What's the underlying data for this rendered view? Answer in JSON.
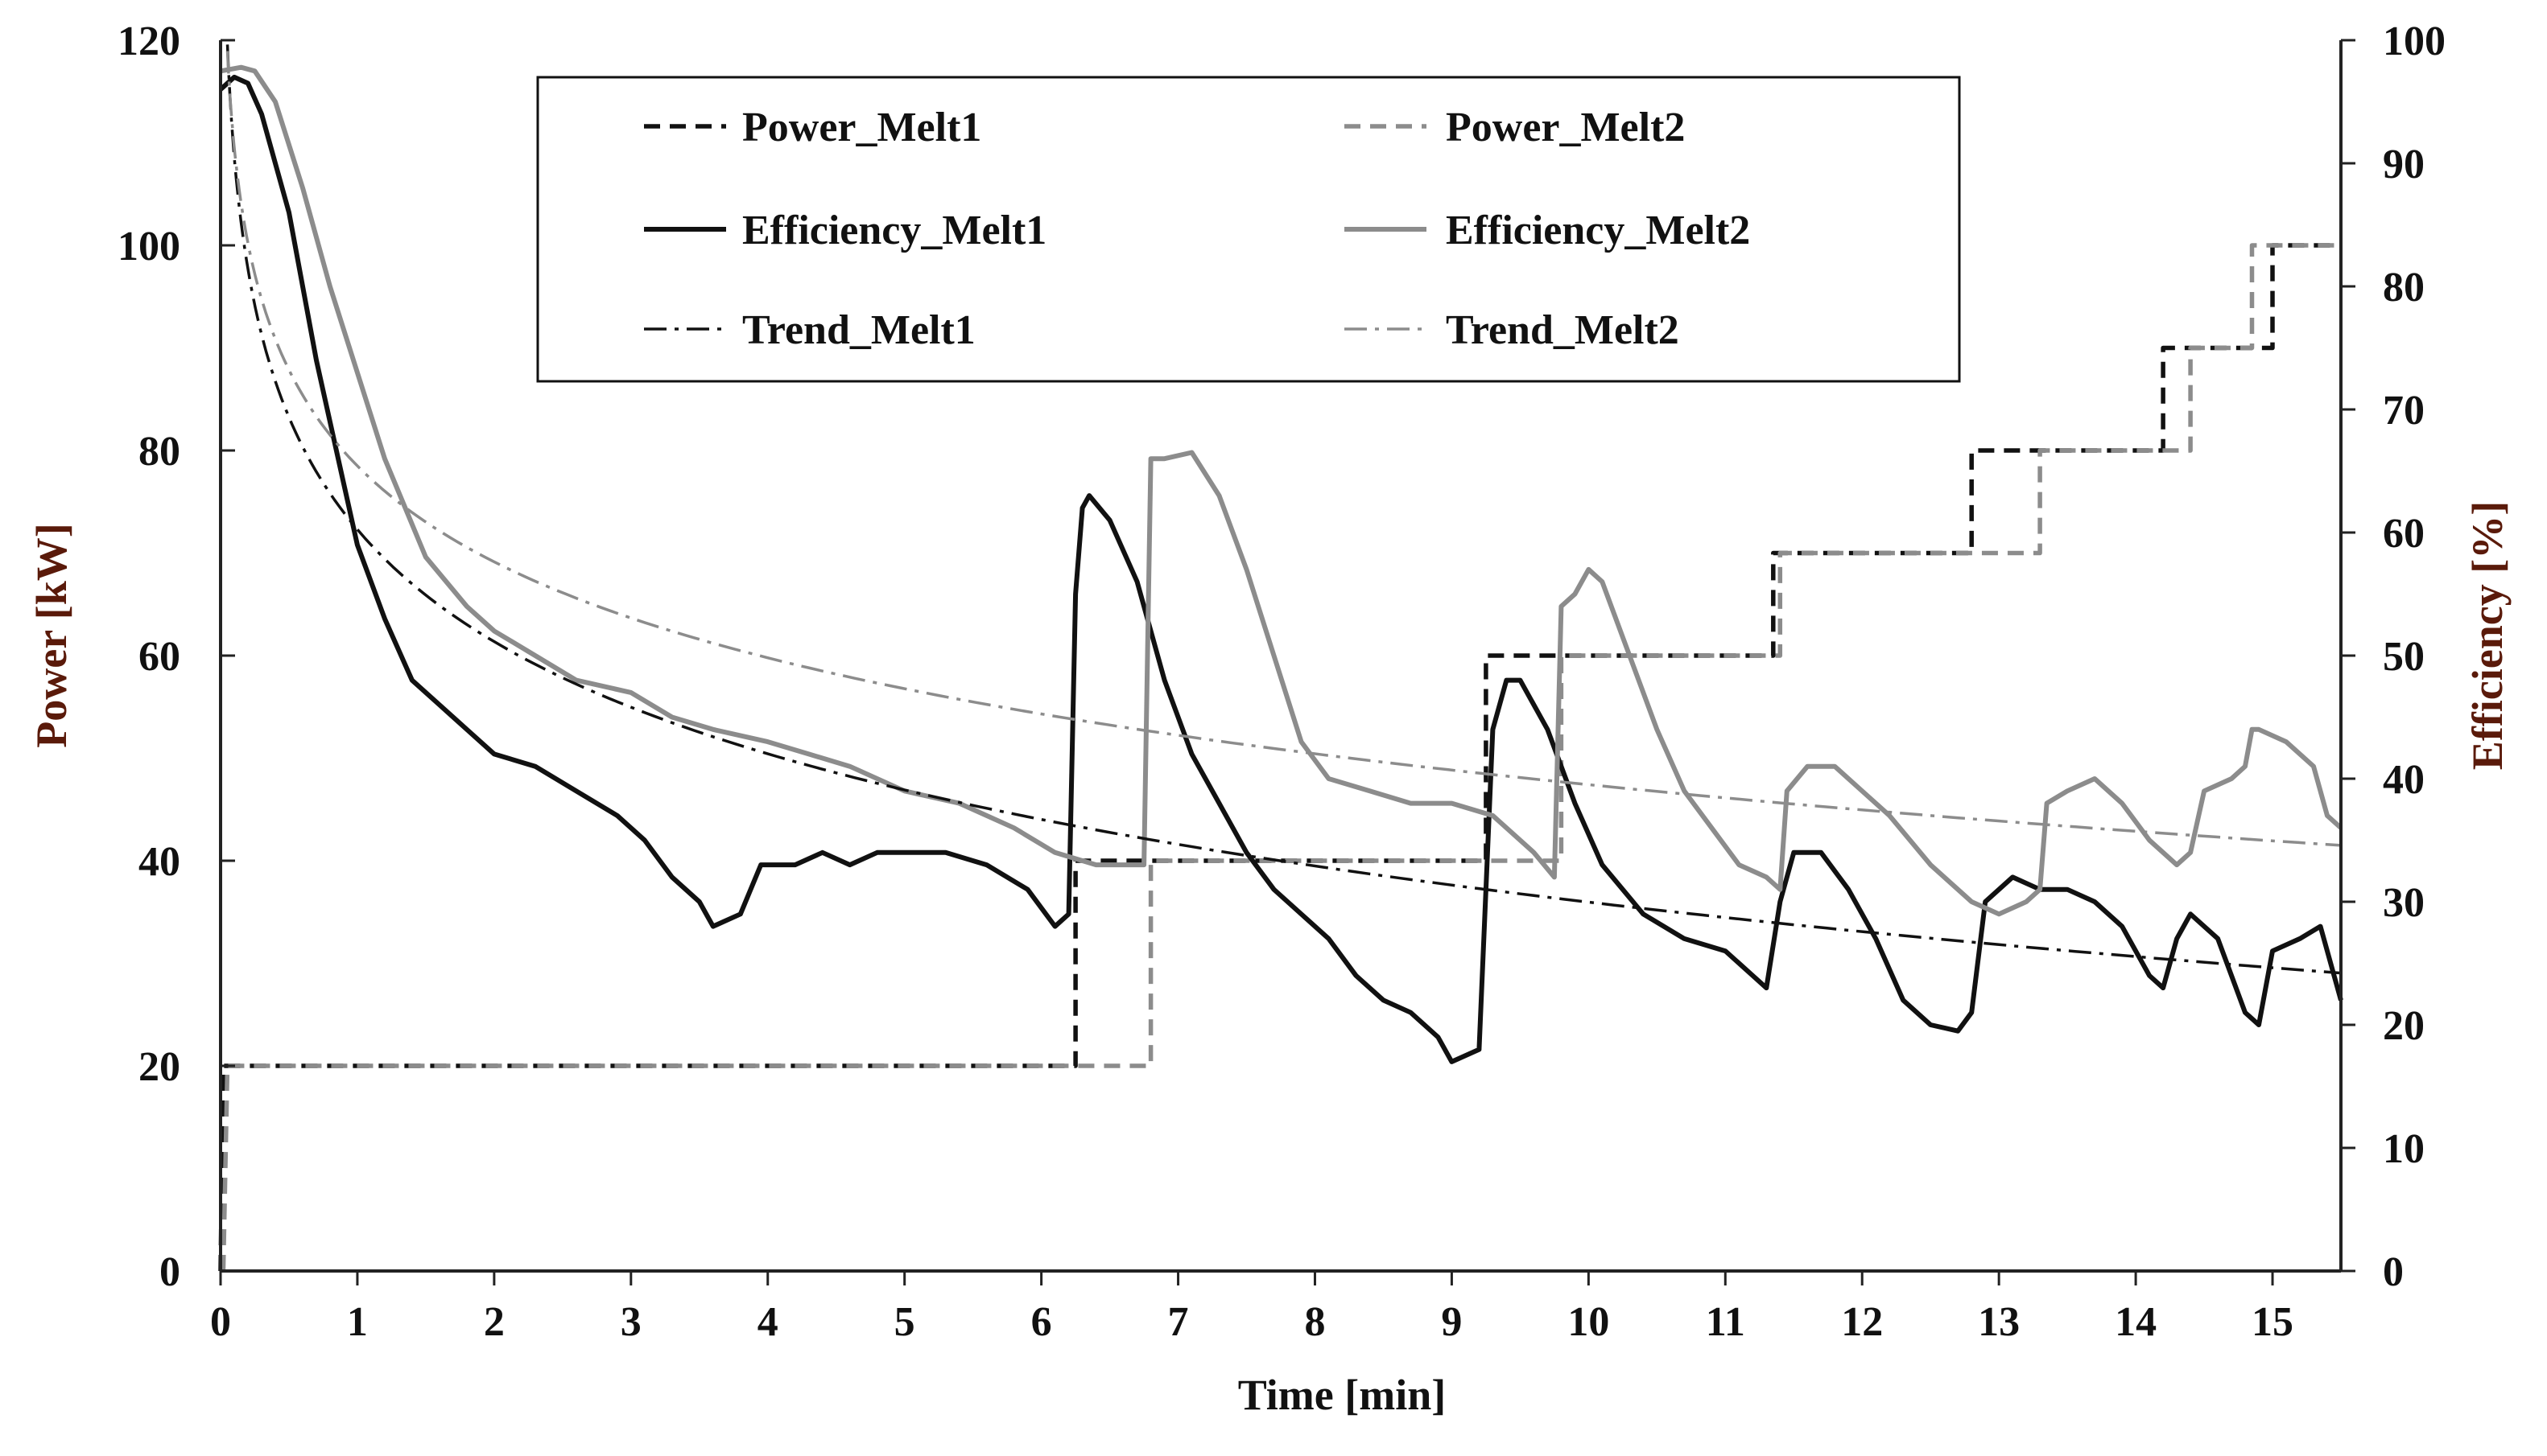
{
  "chart_data": {
    "type": "line",
    "xlabel": "Time [min]",
    "ylabel": "Power [kW]",
    "y2label": "Efficiency [%]",
    "xlim": [
      0,
      15.5
    ],
    "ylim": [
      0,
      120
    ],
    "y2lim": [
      0,
      100
    ],
    "x_ticks": [
      0,
      1,
      2,
      3,
      4,
      5,
      6,
      7,
      8,
      9,
      10,
      11,
      12,
      13,
      14,
      15
    ],
    "y_ticks": [
      0,
      20,
      40,
      60,
      80,
      100,
      120
    ],
    "y2_ticks": [
      0,
      10,
      20,
      30,
      40,
      50,
      60,
      70,
      80,
      90,
      100
    ],
    "grid": false,
    "legend_position": "top-center",
    "colors": {
      "melt1": "#111111",
      "melt2": "#8c8c8c",
      "axis": "#222222"
    },
    "series": [
      {
        "name": "Power_Melt1",
        "axis": "left",
        "style": "dashed",
        "color": "#111111",
        "points": [
          [
            0,
            0
          ],
          [
            0.02,
            20
          ],
          [
            6.25,
            20
          ],
          [
            6.25,
            40
          ],
          [
            9.25,
            40
          ],
          [
            9.25,
            60
          ],
          [
            11.35,
            60
          ],
          [
            11.35,
            70
          ],
          [
            12.8,
            70
          ],
          [
            12.8,
            80
          ],
          [
            14.2,
            80
          ],
          [
            14.2,
            90
          ],
          [
            15.0,
            90
          ],
          [
            15.0,
            100
          ],
          [
            15.5,
            100
          ]
        ]
      },
      {
        "name": "Power_Melt2",
        "axis": "left",
        "style": "dashed",
        "color": "#8c8c8c",
        "points": [
          [
            0.02,
            0
          ],
          [
            0.05,
            20
          ],
          [
            6.8,
            20
          ],
          [
            6.8,
            40
          ],
          [
            9.8,
            40
          ],
          [
            9.8,
            60
          ],
          [
            11.4,
            60
          ],
          [
            11.4,
            70
          ],
          [
            13.3,
            70
          ],
          [
            13.3,
            80
          ],
          [
            14.4,
            80
          ],
          [
            14.4,
            90
          ],
          [
            14.85,
            90
          ],
          [
            14.85,
            100
          ],
          [
            15.5,
            100
          ]
        ]
      },
      {
        "name": "Efficiency_Melt1",
        "axis": "right",
        "style": "solid",
        "color": "#111111",
        "points": [
          [
            0,
            96
          ],
          [
            0.1,
            97
          ],
          [
            0.2,
            96.5
          ],
          [
            0.3,
            94
          ],
          [
            0.5,
            86
          ],
          [
            0.7,
            74
          ],
          [
            0.9,
            64
          ],
          [
            1.0,
            59
          ],
          [
            1.2,
            53
          ],
          [
            1.4,
            48
          ],
          [
            1.6,
            46
          ],
          [
            1.8,
            44
          ],
          [
            2.0,
            42
          ],
          [
            2.3,
            41
          ],
          [
            2.6,
            39
          ],
          [
            2.9,
            37
          ],
          [
            3.1,
            35
          ],
          [
            3.3,
            32
          ],
          [
            3.5,
            30
          ],
          [
            3.6,
            28
          ],
          [
            3.8,
            29
          ],
          [
            3.95,
            33
          ],
          [
            4.2,
            33
          ],
          [
            4.4,
            34
          ],
          [
            4.6,
            33
          ],
          [
            4.8,
            34
          ],
          [
            5.0,
            34
          ],
          [
            5.3,
            34
          ],
          [
            5.6,
            33
          ],
          [
            5.9,
            31
          ],
          [
            6.1,
            28
          ],
          [
            6.2,
            29
          ],
          [
            6.25,
            55
          ],
          [
            6.3,
            62
          ],
          [
            6.35,
            63
          ],
          [
            6.5,
            61
          ],
          [
            6.7,
            56
          ],
          [
            6.9,
            48
          ],
          [
            7.1,
            42
          ],
          [
            7.3,
            38
          ],
          [
            7.5,
            34
          ],
          [
            7.7,
            31
          ],
          [
            7.9,
            29
          ],
          [
            8.1,
            27
          ],
          [
            8.3,
            24
          ],
          [
            8.5,
            22
          ],
          [
            8.7,
            21
          ],
          [
            8.9,
            19
          ],
          [
            9.0,
            17
          ],
          [
            9.2,
            18
          ],
          [
            9.3,
            44
          ],
          [
            9.4,
            48
          ],
          [
            9.5,
            48
          ],
          [
            9.7,
            44
          ],
          [
            9.9,
            38
          ],
          [
            10.1,
            33
          ],
          [
            10.4,
            29
          ],
          [
            10.7,
            27
          ],
          [
            11.0,
            26
          ],
          [
            11.2,
            24
          ],
          [
            11.3,
            23
          ],
          [
            11.4,
            30
          ],
          [
            11.5,
            34
          ],
          [
            11.7,
            34
          ],
          [
            11.9,
            31
          ],
          [
            12.1,
            27
          ],
          [
            12.3,
            22
          ],
          [
            12.5,
            20
          ],
          [
            12.7,
            19.5
          ],
          [
            12.8,
            21
          ],
          [
            12.9,
            30
          ],
          [
            13.1,
            32
          ],
          [
            13.3,
            31
          ],
          [
            13.5,
            31
          ],
          [
            13.7,
            30
          ],
          [
            13.9,
            28
          ],
          [
            14.1,
            24
          ],
          [
            14.2,
            23
          ],
          [
            14.3,
            27
          ],
          [
            14.4,
            29
          ],
          [
            14.6,
            27
          ],
          [
            14.8,
            21
          ],
          [
            14.9,
            20
          ],
          [
            15.0,
            26
          ],
          [
            15.2,
            27
          ],
          [
            15.35,
            28
          ],
          [
            15.5,
            22
          ]
        ]
      },
      {
        "name": "Efficiency_Melt2",
        "axis": "right",
        "style": "solid",
        "color": "#8c8c8c",
        "points": [
          [
            0,
            97.5
          ],
          [
            0.15,
            97.8
          ],
          [
            0.25,
            97.5
          ],
          [
            0.4,
            95
          ],
          [
            0.6,
            88
          ],
          [
            0.8,
            80
          ],
          [
            1.0,
            73
          ],
          [
            1.2,
            66
          ],
          [
            1.5,
            58
          ],
          [
            1.8,
            54
          ],
          [
            2.0,
            52
          ],
          [
            2.3,
            50
          ],
          [
            2.6,
            48
          ],
          [
            3.0,
            47
          ],
          [
            3.3,
            45
          ],
          [
            3.6,
            44
          ],
          [
            4.0,
            43
          ],
          [
            4.3,
            42
          ],
          [
            4.6,
            41
          ],
          [
            5.0,
            39
          ],
          [
            5.4,
            38
          ],
          [
            5.8,
            36
          ],
          [
            6.1,
            34
          ],
          [
            6.4,
            33
          ],
          [
            6.7,
            33
          ],
          [
            6.75,
            33
          ],
          [
            6.8,
            66
          ],
          [
            6.9,
            66
          ],
          [
            7.1,
            66.5
          ],
          [
            7.3,
            63
          ],
          [
            7.5,
            57
          ],
          [
            7.7,
            50
          ],
          [
            7.9,
            43
          ],
          [
            8.1,
            40
          ],
          [
            8.4,
            39
          ],
          [
            8.7,
            38
          ],
          [
            9.0,
            38
          ],
          [
            9.3,
            37
          ],
          [
            9.6,
            34
          ],
          [
            9.75,
            32
          ],
          [
            9.8,
            54
          ],
          [
            9.9,
            55
          ],
          [
            10.0,
            57
          ],
          [
            10.1,
            56
          ],
          [
            10.3,
            50
          ],
          [
            10.5,
            44
          ],
          [
            10.7,
            39
          ],
          [
            10.9,
            36
          ],
          [
            11.1,
            33
          ],
          [
            11.3,
            32
          ],
          [
            11.4,
            31
          ],
          [
            11.45,
            39
          ],
          [
            11.6,
            41
          ],
          [
            11.8,
            41
          ],
          [
            12.0,
            39
          ],
          [
            12.2,
            37
          ],
          [
            12.5,
            33
          ],
          [
            12.8,
            30
          ],
          [
            13.0,
            29
          ],
          [
            13.2,
            30
          ],
          [
            13.3,
            31
          ],
          [
            13.35,
            38
          ],
          [
            13.5,
            39
          ],
          [
            13.7,
            40
          ],
          [
            13.9,
            38
          ],
          [
            14.1,
            35
          ],
          [
            14.3,
            33
          ],
          [
            14.4,
            34
          ],
          [
            14.5,
            39
          ],
          [
            14.7,
            40
          ],
          [
            14.8,
            41
          ],
          [
            14.85,
            44
          ],
          [
            14.9,
            44
          ],
          [
            15.1,
            43
          ],
          [
            15.3,
            41
          ],
          [
            15.4,
            37
          ],
          [
            15.5,
            36
          ]
        ]
      },
      {
        "name": "Trend_Melt1",
        "axis": "left",
        "style": "dashdot",
        "color": "#111111",
        "function": "-15.78*ln(x) + 72.3",
        "x_from": 0.05,
        "x_to": 15.5
      },
      {
        "name": "Trend_Melt2",
        "axis": "left",
        "style": "dashdot",
        "color": "#8c8c8c",
        "function": "-13.5*ln(x) + 78.5",
        "x_from": 0.05,
        "x_to": 15.5
      }
    ]
  }
}
